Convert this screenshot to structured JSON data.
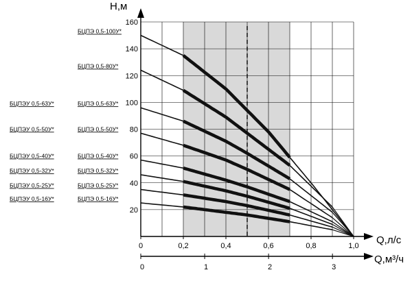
{
  "chart_data": {
    "type": "line",
    "ylabel": "H,м",
    "xlabel": "Q,л/с",
    "x2label": "Q,м³/ч",
    "xlim": [
      0,
      1.0
    ],
    "ylim": [
      0,
      160
    ],
    "x2lim": [
      0,
      3.6
    ],
    "grid": true,
    "xticks": [
      0,
      0.2,
      0.4,
      0.6,
      0.8,
      1.0
    ],
    "xtick_labels": [
      "0",
      "0,2",
      "0,4",
      "0,6",
      "0,8",
      "1,0"
    ],
    "yticks": [
      20,
      40,
      60,
      80,
      100,
      120,
      140,
      160
    ],
    "ytick_labels": [
      "20",
      "40",
      "60",
      "80",
      "100",
      "120",
      "140",
      "160"
    ],
    "x2ticks": [
      0,
      1,
      2,
      3
    ],
    "x2tick_labels": [
      "0",
      "1",
      "2",
      "3"
    ],
    "working_range": [
      0.2,
      0.7
    ],
    "nominal_flow": 0.5,
    "series": [
      {
        "name": "БЦПЭ 0,5-100У*",
        "label_left": "",
        "x": [
          0,
          0.2,
          0.4,
          0.6,
          0.8,
          1.0
        ],
        "y": [
          150,
          135,
          110,
          78,
          40,
          0
        ]
      },
      {
        "name": "БЦПЭ 0,5-80У*",
        "label_left": "",
        "x": [
          0,
          0.2,
          0.4,
          0.5,
          0.7,
          0.9
        ],
        "y": [
          124,
          109,
          89,
          77,
          53,
          22
        ]
      },
      {
        "name": "БЦПЭ 0,5-63У*",
        "label_left": "БЦПЭУ 0,5-63У*",
        "x": [
          0,
          0.2,
          0.4,
          0.5,
          0.7,
          0.9
        ],
        "y": [
          96,
          86,
          71,
          62,
          43,
          18
        ]
      },
      {
        "name": "БЦПЭ 0,5-50У*",
        "label_left": "БЦПЭУ 0,5-50У*",
        "x": [
          0,
          0.2,
          0.4,
          0.5,
          0.7,
          0.9
        ],
        "y": [
          77,
          68,
          57,
          50,
          35,
          14
        ]
      },
      {
        "name": "БЦПЭ 0,5-40У*",
        "label_left": "БЦПЭУ 0,5-40У*",
        "x": [
          0,
          0.2,
          0.4,
          0.5,
          0.7,
          0.9
        ],
        "y": [
          57,
          51,
          42,
          37,
          26,
          11
        ]
      },
      {
        "name": "БЦПЭ 0,5-32У*",
        "label_left": "БЦПЭУ 0,5-32У*",
        "x": [
          0,
          0.2,
          0.4,
          0.5,
          0.7,
          0.9
        ],
        "y": [
          46,
          41,
          34,
          30,
          21,
          9
        ]
      },
      {
        "name": "БЦПЭ 0,5-25У*",
        "label_left": "БЦПЭУ 0,5-25У*",
        "x": [
          0,
          0.2,
          0.4,
          0.5,
          0.7,
          0.9
        ],
        "y": [
          35,
          31,
          26,
          23,
          16,
          7
        ]
      },
      {
        "name": "БЦПЭ 0,5-16У*",
        "label_left": "БЦПЭУ 0,5-16У*",
        "x": [
          0,
          0.2,
          0.4,
          0.5,
          0.7,
          0.9
        ],
        "y": [
          25,
          22,
          18,
          16,
          11,
          5
        ]
      }
    ]
  },
  "colors": {
    "axis": "#000000",
    "grid": "#000000",
    "curve": "#111111",
    "working_zone": "#d9d9d9"
  }
}
